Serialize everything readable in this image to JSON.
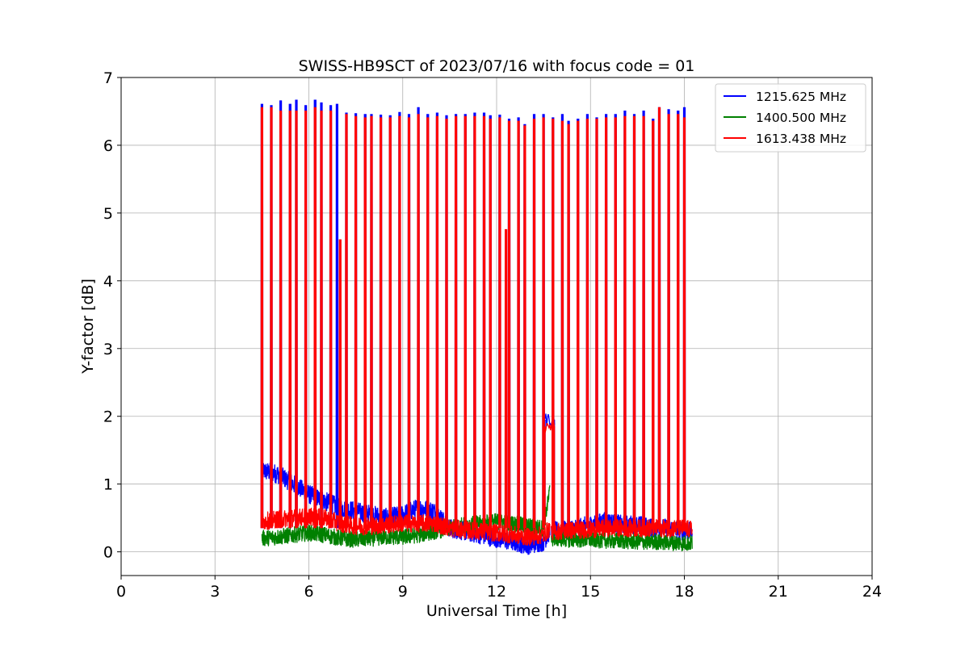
{
  "chart_data": {
    "type": "line",
    "title": "SWISS-HB9SCT of 2023/07/16 with focus code = 01",
    "xlabel": "Universal Time [h]",
    "ylabel": "Y-factor [dB]",
    "xlim": [
      0,
      24
    ],
    "ylim": [
      -0.35,
      7
    ],
    "xticks": [
      0,
      3,
      6,
      9,
      12,
      15,
      18,
      21,
      24
    ],
    "yticks": [
      0,
      1,
      2,
      3,
      4,
      5,
      6,
      7
    ],
    "grid": true,
    "legend_position": "top-right",
    "series": [
      {
        "name": "1215.625 MHz",
        "color": "#0000ff",
        "segments": [
          {
            "t": [
              4.5,
              5.0,
              5.5,
              6.0,
              6.5,
              7.0,
              7.5,
              8.0,
              8.5,
              9.0,
              9.5,
              10.0,
              10.5,
              11.0,
              11.5,
              12.0,
              12.5,
              13.0,
              13.5,
              13.7
            ],
            "y": [
              1.2,
              1.15,
              1.0,
              0.85,
              0.75,
              0.65,
              0.6,
              0.55,
              0.5,
              0.55,
              0.65,
              0.6,
              0.35,
              0.3,
              0.25,
              0.2,
              0.15,
              0.1,
              0.15,
              0.3
            ]
          },
          {
            "t": [
              13.75,
              14.5,
              15.0,
              15.5,
              16.0,
              16.5,
              17.0,
              17.5,
              18.0,
              18.25
            ],
            "y": [
              0.3,
              0.35,
              0.4,
              0.45,
              0.4,
              0.4,
              0.35,
              0.35,
              0.3,
              0.3
            ]
          }
        ],
        "bump": {
          "t": [
            13.55,
            13.85
          ],
          "y": 1.95
        },
        "peaks": [
          {
            "t": 4.5,
            "y": 6.6
          },
          {
            "t": 4.8,
            "y": 6.58
          },
          {
            "t": 5.1,
            "y": 6.65
          },
          {
            "t": 5.4,
            "y": 6.6
          },
          {
            "t": 5.6,
            "y": 6.66
          },
          {
            "t": 5.9,
            "y": 6.58
          },
          {
            "t": 6.2,
            "y": 6.66
          },
          {
            "t": 6.4,
            "y": 6.62
          },
          {
            "t": 6.7,
            "y": 6.58
          },
          {
            "t": 6.9,
            "y": 6.6
          },
          {
            "t": 7.2,
            "y": 6.47
          },
          {
            "t": 7.5,
            "y": 6.46
          },
          {
            "t": 7.8,
            "y": 6.45
          },
          {
            "t": 8.0,
            "y": 6.45
          },
          {
            "t": 8.3,
            "y": 6.44
          },
          {
            "t": 8.6,
            "y": 6.43
          },
          {
            "t": 8.9,
            "y": 6.48
          },
          {
            "t": 9.2,
            "y": 6.45
          },
          {
            "t": 9.5,
            "y": 6.55
          },
          {
            "t": 9.8,
            "y": 6.45
          },
          {
            "t": 10.1,
            "y": 6.47
          },
          {
            "t": 10.4,
            "y": 6.43
          },
          {
            "t": 10.7,
            "y": 6.45
          },
          {
            "t": 11.0,
            "y": 6.45
          },
          {
            "t": 11.3,
            "y": 6.47
          },
          {
            "t": 11.6,
            "y": 6.47
          },
          {
            "t": 11.8,
            "y": 6.43
          },
          {
            "t": 12.1,
            "y": 6.44
          },
          {
            "t": 12.4,
            "y": 6.38
          },
          {
            "t": 12.7,
            "y": 6.4
          },
          {
            "t": 12.9,
            "y": 6.3
          },
          {
            "t": 13.2,
            "y": 6.45
          },
          {
            "t": 13.5,
            "y": 6.45
          },
          {
            "t": 13.8,
            "y": 6.4
          },
          {
            "t": 14.1,
            "y": 6.45
          },
          {
            "t": 14.3,
            "y": 6.35
          },
          {
            "t": 14.6,
            "y": 6.38
          },
          {
            "t": 14.9,
            "y": 6.45
          },
          {
            "t": 15.2,
            "y": 6.4
          },
          {
            "t": 15.5,
            "y": 6.45
          },
          {
            "t": 15.8,
            "y": 6.45
          },
          {
            "t": 16.1,
            "y": 6.5
          },
          {
            "t": 16.4,
            "y": 6.45
          },
          {
            "t": 16.7,
            "y": 6.5
          },
          {
            "t": 17.0,
            "y": 6.38
          },
          {
            "t": 17.2,
            "y": 6.55
          },
          {
            "t": 17.5,
            "y": 6.52
          },
          {
            "t": 17.8,
            "y": 6.5
          },
          {
            "t": 18.0,
            "y": 6.55
          }
        ]
      },
      {
        "name": "1400.500 MHz",
        "color": "#008000",
        "segments": [
          {
            "t": [
              4.5,
              5.0,
              5.5,
              6.0,
              6.5,
              7.0,
              7.5,
              8.0,
              8.5,
              9.0,
              9.5,
              10.0,
              10.5,
              11.0,
              11.5,
              12.0,
              12.5,
              13.0,
              13.5,
              13.7
            ],
            "y": [
              0.2,
              0.22,
              0.25,
              0.28,
              0.25,
              0.2,
              0.18,
              0.2,
              0.22,
              0.22,
              0.25,
              0.3,
              0.35,
              0.4,
              0.42,
              0.45,
              0.42,
              0.38,
              0.35,
              0.9
            ]
          },
          {
            "t": [
              13.75,
              14.5,
              15.0,
              15.5,
              16.0,
              16.5,
              17.0,
              17.5,
              18.0,
              18.25
            ],
            "y": [
              0.2,
              0.18,
              0.18,
              0.17,
              0.16,
              0.15,
              0.15,
              0.14,
              0.13,
              0.13
            ]
          }
        ]
      },
      {
        "name": "1613.438 MHz",
        "color": "#ff0000",
        "segments": [
          {
            "t": [
              4.5,
              5.0,
              5.5,
              6.0,
              6.5,
              7.0,
              7.5,
              8.0,
              8.5,
              9.0,
              9.5,
              10.0,
              10.5,
              11.0,
              11.5,
              12.0,
              12.5,
              13.0,
              13.5,
              13.7
            ],
            "y": [
              0.45,
              0.48,
              0.5,
              0.52,
              0.5,
              0.42,
              0.38,
              0.38,
              0.4,
              0.42,
              0.42,
              0.42,
              0.35,
              0.32,
              0.3,
              0.28,
              0.25,
              0.22,
              0.25,
              0.35
            ]
          },
          {
            "t": [
              13.75,
              14.5,
              15.0,
              15.5,
              16.0,
              16.5,
              17.0,
              17.5,
              18.0,
              18.25
            ],
            "y": [
              0.3,
              0.32,
              0.33,
              0.35,
              0.35,
              0.35,
              0.35,
              0.35,
              0.35,
              0.32
            ]
          }
        ],
        "bump": {
          "t": [
            13.55,
            13.85
          ],
          "y": 1.85
        },
        "peaks": [
          {
            "t": 4.5,
            "y": 6.55
          },
          {
            "t": 4.8,
            "y": 6.55
          },
          {
            "t": 5.1,
            "y": 6.5
          },
          {
            "t": 5.4,
            "y": 6.5
          },
          {
            "t": 5.6,
            "y": 6.5
          },
          {
            "t": 5.9,
            "y": 6.5
          },
          {
            "t": 6.2,
            "y": 6.55
          },
          {
            "t": 6.4,
            "y": 6.5
          },
          {
            "t": 6.7,
            "y": 6.5
          },
          {
            "t": 7.0,
            "y": 4.6
          },
          {
            "t": 7.2,
            "y": 6.45
          },
          {
            "t": 7.5,
            "y": 6.42
          },
          {
            "t": 7.8,
            "y": 6.4
          },
          {
            "t": 8.0,
            "y": 6.42
          },
          {
            "t": 8.3,
            "y": 6.4
          },
          {
            "t": 8.6,
            "y": 6.4
          },
          {
            "t": 8.9,
            "y": 6.42
          },
          {
            "t": 9.2,
            "y": 6.4
          },
          {
            "t": 9.5,
            "y": 6.45
          },
          {
            "t": 9.8,
            "y": 6.4
          },
          {
            "t": 10.1,
            "y": 6.42
          },
          {
            "t": 10.4,
            "y": 6.38
          },
          {
            "t": 10.7,
            "y": 6.42
          },
          {
            "t": 11.0,
            "y": 6.42
          },
          {
            "t": 11.3,
            "y": 6.42
          },
          {
            "t": 11.6,
            "y": 6.42
          },
          {
            "t": 11.8,
            "y": 6.38
          },
          {
            "t": 12.1,
            "y": 6.4
          },
          {
            "t": 12.3,
            "y": 4.75
          },
          {
            "t": 12.4,
            "y": 6.35
          },
          {
            "t": 12.7,
            "y": 6.35
          },
          {
            "t": 12.9,
            "y": 6.28
          },
          {
            "t": 13.2,
            "y": 6.38
          },
          {
            "t": 13.5,
            "y": 6.4
          },
          {
            "t": 13.8,
            "y": 6.38
          },
          {
            "t": 14.1,
            "y": 6.35
          },
          {
            "t": 14.3,
            "y": 6.3
          },
          {
            "t": 14.6,
            "y": 6.35
          },
          {
            "t": 14.9,
            "y": 6.38
          },
          {
            "t": 15.2,
            "y": 6.38
          },
          {
            "t": 15.5,
            "y": 6.4
          },
          {
            "t": 15.8,
            "y": 6.4
          },
          {
            "t": 16.1,
            "y": 6.42
          },
          {
            "t": 16.4,
            "y": 6.42
          },
          {
            "t": 16.7,
            "y": 6.42
          },
          {
            "t": 17.0,
            "y": 6.35
          },
          {
            "t": 17.2,
            "y": 6.55
          },
          {
            "t": 17.5,
            "y": 6.45
          },
          {
            "t": 17.8,
            "y": 6.45
          },
          {
            "t": 18.0,
            "y": 6.4
          }
        ]
      }
    ]
  }
}
